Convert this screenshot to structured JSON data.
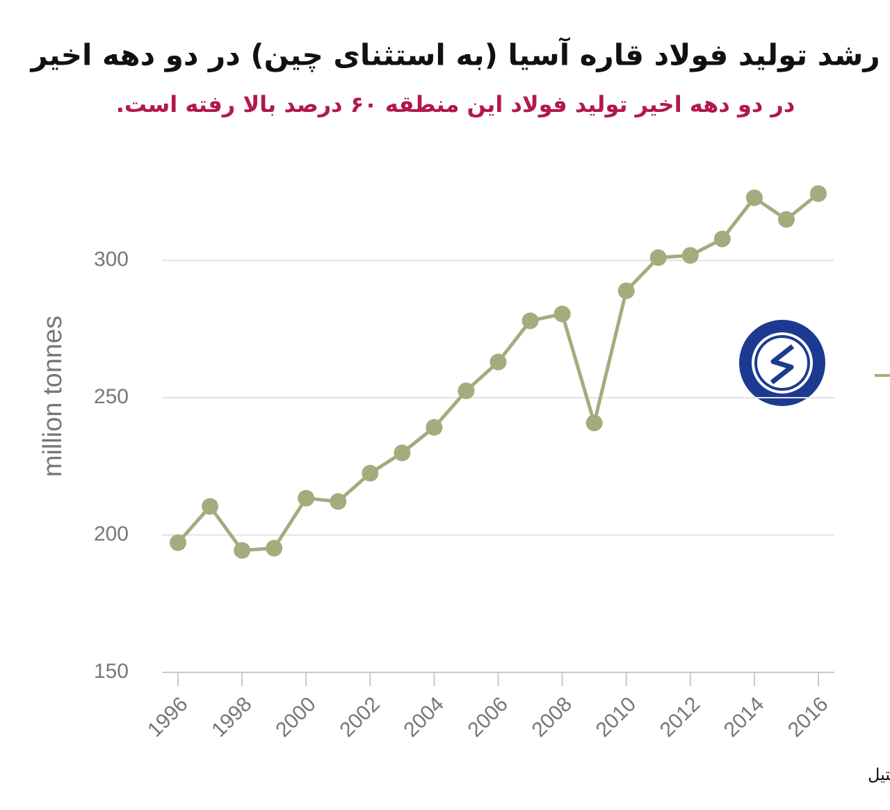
{
  "chart_data": {
    "type": "line",
    "title": "رشد تولید فولاد قاره آسیا (به استثنای چین) در دو دهه اخیر",
    "subtitle": "در دو دهه اخیر تولید فولاد این منطقه ۶۰ درصد بالا رفته است.",
    "y_label": "million tonnes",
    "source": "منبع: ورلد استیل",
    "x": [
      1996,
      1997,
      1998,
      1999,
      2000,
      2001,
      2002,
      2003,
      2004,
      2005,
      2006,
      2007,
      2008,
      2009,
      2010,
      2011,
      2012,
      2013,
      2014,
      2015,
      2016
    ],
    "values": [
      197.2,
      210.4,
      194.4,
      195.2,
      213.4,
      212.2,
      222.5,
      229.9,
      239.2,
      252.5,
      263.0,
      278.0,
      280.5,
      240.8,
      288.9,
      301.0,
      301.8,
      307.8,
      322.8,
      314.9,
      324.3
    ],
    "color": "#a6ab7e",
    "xlim": [
      1995.5,
      2016.5
    ],
    "xticks": [
      1996,
      1998,
      2000,
      2002,
      2004,
      2006,
      2008,
      2010,
      2012,
      2014,
      2016
    ],
    "ylim": [
      150,
      330
    ],
    "yticks": [
      150,
      200,
      250,
      300
    ],
    "grid": true
  }
}
